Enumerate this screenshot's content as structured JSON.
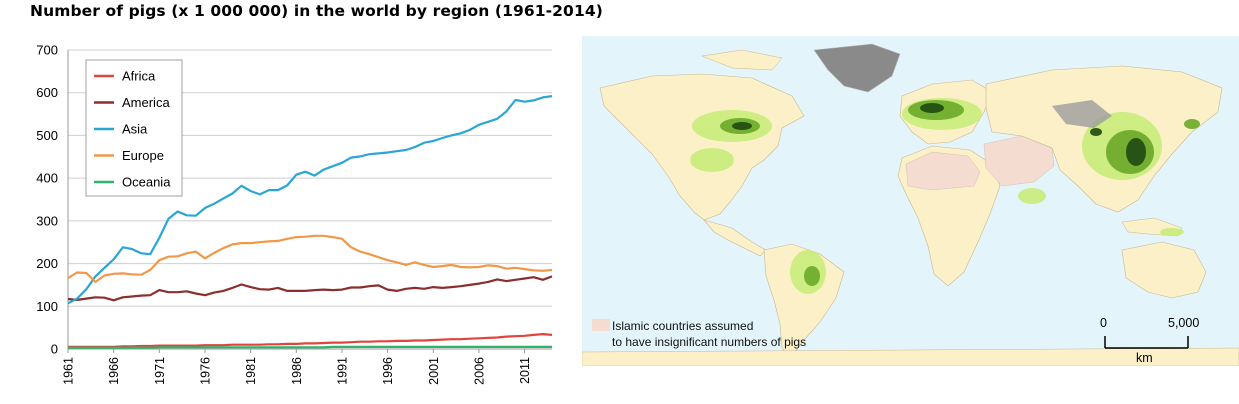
{
  "title": "Number of pigs (x 1 000 000) in the world by region (1961-2014)",
  "chart_data": {
    "type": "line",
    "title": "Number of pigs (x 1 000 000) in the world by region (1961-2014)",
    "xlabel": "",
    "ylabel": "",
    "xlim": [
      1961,
      2014
    ],
    "ylim": [
      0,
      700
    ],
    "yticks": [
      0,
      100,
      200,
      300,
      400,
      500,
      600,
      700
    ],
    "xticks": [
      1961,
      1966,
      1971,
      1976,
      1981,
      1986,
      1991,
      1996,
      2001,
      2006,
      2011
    ],
    "grid": "horizontal",
    "legend": "top-left",
    "x": [
      1961,
      1962,
      1963,
      1964,
      1965,
      1966,
      1967,
      1968,
      1969,
      1970,
      1971,
      1972,
      1973,
      1974,
      1975,
      1976,
      1977,
      1978,
      1979,
      1980,
      1981,
      1982,
      1983,
      1984,
      1985,
      1986,
      1987,
      1988,
      1989,
      1990,
      1991,
      1992,
      1993,
      1994,
      1995,
      1996,
      1997,
      1998,
      1999,
      2000,
      2001,
      2002,
      2003,
      2004,
      2005,
      2006,
      2007,
      2008,
      2009,
      2010,
      2011,
      2012,
      2013,
      2014
    ],
    "series": [
      {
        "name": "Africa",
        "color": "#e0443c",
        "values": [
          5,
          5,
          5,
          5,
          5,
          5,
          6,
          6,
          7,
          7,
          8,
          8,
          8,
          8,
          8,
          9,
          9,
          9,
          10,
          10,
          10,
          10,
          11,
          11,
          12,
          12,
          13,
          13,
          14,
          15,
          15,
          16,
          17,
          17,
          18,
          18,
          19,
          19,
          20,
          20,
          21,
          22,
          23,
          23,
          24,
          25,
          26,
          27,
          29,
          30,
          31,
          33,
          35,
          33
        ]
      },
      {
        "name": "America",
        "color": "#8b2e2e",
        "values": [
          117,
          115,
          118,
          121,
          120,
          114,
          121,
          123,
          125,
          126,
          138,
          133,
          133,
          135,
          130,
          126,
          132,
          136,
          143,
          151,
          145,
          140,
          139,
          143,
          136,
          136,
          136,
          138,
          139,
          138,
          139,
          144,
          144,
          147,
          149,
          139,
          136,
          141,
          143,
          141,
          145,
          143,
          145,
          147,
          150,
          153,
          157,
          163,
          159,
          162,
          165,
          168,
          162,
          170
        ]
      },
      {
        "name": "Asia",
        "color": "#2aa6d6",
        "values": [
          107,
          118,
          140,
          170,
          190,
          210,
          238,
          234,
          224,
          222,
          260,
          305,
          322,
          313,
          312,
          330,
          340,
          352,
          364,
          382,
          370,
          362,
          372,
          372,
          383,
          408,
          415,
          406,
          420,
          428,
          436,
          448,
          451,
          456,
          458,
          460,
          463,
          466,
          473,
          483,
          487,
          494,
          500,
          505,
          513,
          525,
          532,
          539,
          556,
          583,
          579,
          582,
          589,
          592
        ]
      },
      {
        "name": "Europe",
        "color": "#f0984a",
        "values": [
          166,
          179,
          178,
          157,
          172,
          176,
          177,
          175,
          174,
          185,
          208,
          216,
          217,
          224,
          228,
          212,
          225,
          236,
          245,
          248,
          248,
          250,
          252,
          253,
          258,
          262,
          263,
          265,
          265,
          262,
          258,
          238,
          228,
          222,
          215,
          208,
          203,
          197,
          203,
          197,
          192,
          194,
          197,
          192,
          191,
          192,
          196,
          194,
          188,
          190,
          187,
          184,
          183,
          185
        ]
      },
      {
        "name": "Oceania",
        "color": "#2db36a",
        "values": [
          3,
          3,
          3,
          3,
          3,
          3,
          3,
          3,
          3,
          3,
          4,
          4,
          4,
          4,
          4,
          4,
          4,
          4,
          4,
          4,
          4,
          4,
          4,
          4,
          4,
          4,
          4,
          4,
          4,
          5,
          5,
          5,
          5,
          5,
          5,
          5,
          5,
          5,
          5,
          5,
          5,
          5,
          5,
          5,
          5,
          5,
          5,
          5,
          5,
          5,
          5,
          5,
          5,
          5
        ]
      }
    ]
  },
  "map": {
    "legend_text_line1": "Islamic countries assumed",
    "legend_text_line2": "to have insignificant numbers of pigs",
    "legend_swatch_color": "#f4dcd0",
    "scale_start": "0",
    "scale_end": "5,000",
    "scale_unit": "km",
    "colors": {
      "ocean": "#e3f4fb",
      "land": "#fbf0c8",
      "low_density": "#c9ec7a",
      "mid_density": "#6aa828",
      "high_density": "#1f4a12",
      "ice": "#8a8a8a"
    }
  }
}
